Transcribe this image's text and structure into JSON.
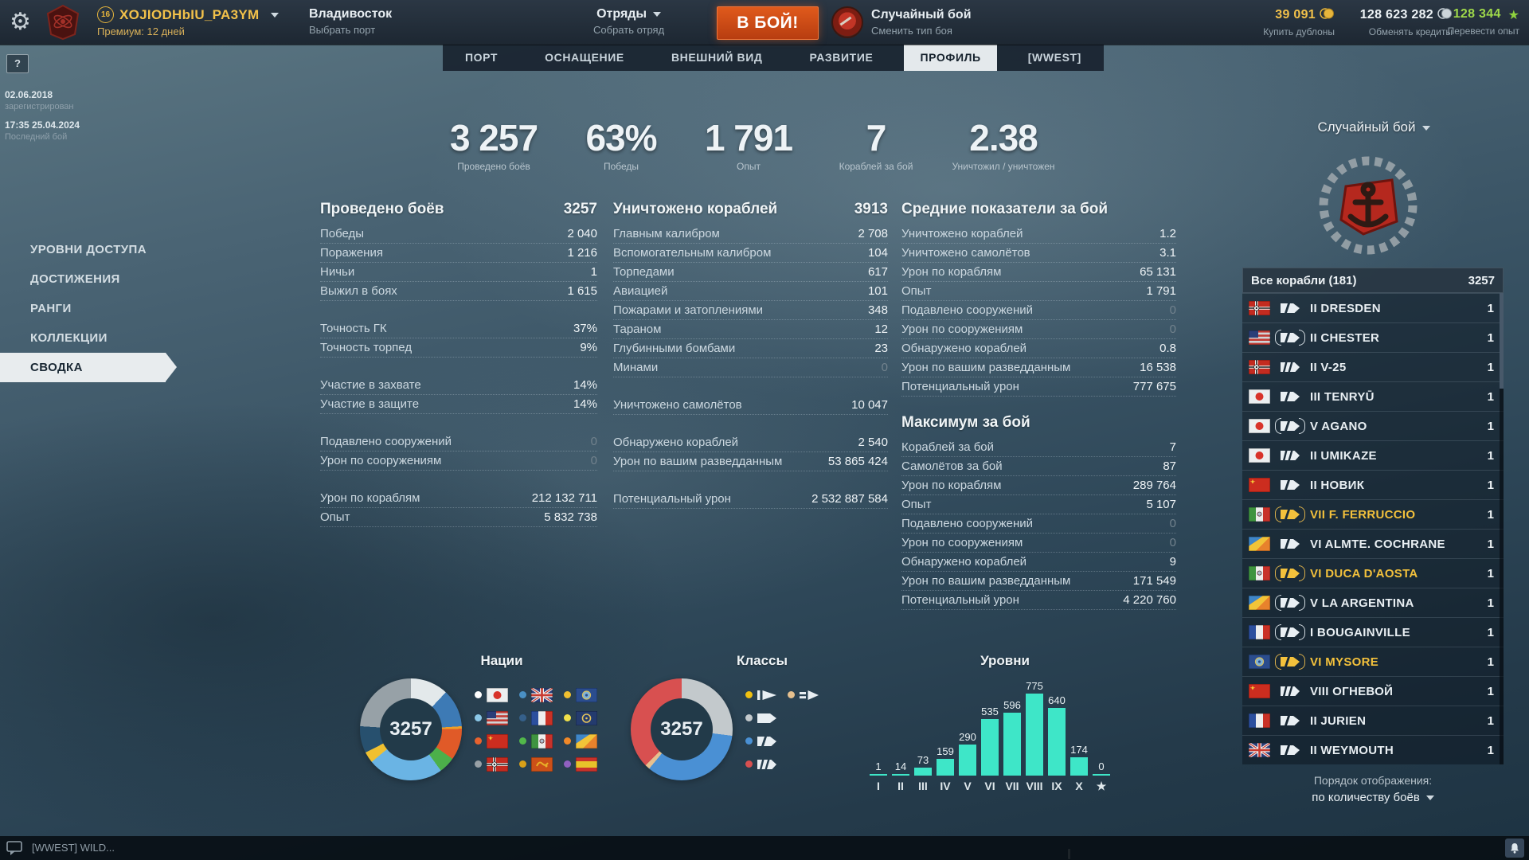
{
  "topbar": {
    "player": {
      "badge": "16",
      "name": "XOJIODHbIU_PA3YM",
      "premium": "Премиум: 12 дней"
    },
    "port": {
      "title": "Владивосток",
      "subtitle": "Выбрать порт"
    },
    "squad": {
      "title": "Отряды",
      "subtitle": "Собрать отряд"
    },
    "battle_button": "В БОЙ!",
    "battle_type": {
      "title": "Случайный бой",
      "subtitle": "Сменить тип боя"
    },
    "currencies": [
      {
        "value": "39 091",
        "label": "Купить дублоны",
        "icon": "doubloons",
        "color": "#f2c14a"
      },
      {
        "value": "128 623 282",
        "label": "Обменять кредиты",
        "icon": "credits",
        "color": "#eef3f6"
      },
      {
        "value": "128 344",
        "label": "Перевести опыт",
        "icon": "free-xp",
        "color": "#9fd94a"
      }
    ]
  },
  "tabs": {
    "items": [
      "ПОРТ",
      "ОСНАЩЕНИЕ",
      "ВНЕШНИЙ ВИД",
      "РАЗВИТИЕ",
      "ПРОФИЛЬ",
      "[WWEST]"
    ],
    "active_index": 4
  },
  "account": {
    "help": "?",
    "registered": {
      "value": "02.06.2018",
      "label": "зарегистрирован"
    },
    "last_battle": {
      "value": "17:35 25.04.2024",
      "label": "Последний бой"
    }
  },
  "menu": {
    "items": [
      "УРОВНИ ДОСТУПА",
      "ДОСТИЖЕНИЯ",
      "РАНГИ",
      "КОЛЛЕКЦИИ",
      "СВОДКА"
    ],
    "active_index": 4
  },
  "hero_stats": [
    {
      "value": "3 257",
      "label": "Проведено боёв"
    },
    {
      "value": "63%",
      "label": "Победы"
    },
    {
      "value": "1 791",
      "label": "Опыт"
    },
    {
      "value": "7",
      "label": "Кораблей за бой"
    },
    {
      "value": "2.38",
      "label": "Уничтожил / уничтожен"
    }
  ],
  "stat_columns": [
    {
      "sections": [
        {
          "title": "Проведено боёв",
          "value": "3257",
          "rows": [
            {
              "label": "Победы",
              "value": "2 040"
            },
            {
              "label": "Поражения",
              "value": "1 216"
            },
            {
              "label": "Ничьи",
              "value": "1"
            },
            {
              "label": "Выжил в боях",
              "value": "1 615"
            },
            {
              "sp": true
            },
            {
              "label": "Точность ГК",
              "value": "37%"
            },
            {
              "label": "Точность торпед",
              "value": "9%"
            },
            {
              "sp": true
            },
            {
              "label": "Участие в захвате",
              "value": "14%"
            },
            {
              "label": "Участие в защите",
              "value": "14%"
            },
            {
              "sp": true
            },
            {
              "label": "Подавлено сооружений",
              "value": "0",
              "dim": true
            },
            {
              "label": "Урон по сооружениям",
              "value": "0",
              "dim": true
            },
            {
              "sp": true
            },
            {
              "label": "Урон по кораблям",
              "value": "212 132 711"
            },
            {
              "label": "Опыт",
              "value": "5 832 738"
            }
          ]
        }
      ]
    },
    {
      "sections": [
        {
          "title": "Уничтожено кораблей",
          "value": "3913",
          "rows": [
            {
              "label": "Главным калибром",
              "value": "2 708"
            },
            {
              "label": "Вспомогательным калибром",
              "value": "104"
            },
            {
              "label": "Торпедами",
              "value": "617"
            },
            {
              "label": "Авиацией",
              "value": "101"
            },
            {
              "label": "Пожарами и затоплениями",
              "value": "348"
            },
            {
              "label": "Тараном",
              "value": "12"
            },
            {
              "label": "Глубинными бомбами",
              "value": "23"
            },
            {
              "label": "Минами",
              "value": "0",
              "dim": true
            },
            {
              "sp": true
            },
            {
              "label": "Уничтожено самолётов",
              "value": "10 047"
            },
            {
              "sp": true
            },
            {
              "label": "Обнаружено кораблей",
              "value": "2 540"
            },
            {
              "label": "Урон по вашим разведданным",
              "value": "53 865 424"
            },
            {
              "sp": true
            },
            {
              "label": "Потенциальный урон",
              "value": "2 532 887 584"
            }
          ]
        }
      ]
    },
    {
      "sections": [
        {
          "title": "Средние показатели за бой",
          "value": "",
          "rows": [
            {
              "label": "Уничтожено кораблей",
              "value": "1.2"
            },
            {
              "label": "Уничтожено самолётов",
              "value": "3.1"
            },
            {
              "label": "Урон по кораблям",
              "value": "65 131"
            },
            {
              "label": "Опыт",
              "value": "1 791"
            },
            {
              "label": "Подавлено сооружений",
              "value": "0",
              "dim": true
            },
            {
              "label": "Урон по сооружениям",
              "value": "0",
              "dim": true
            },
            {
              "label": "Обнаружено кораблей",
              "value": "0.8"
            },
            {
              "label": "Урон по вашим разведданным",
              "value": "16 538"
            },
            {
              "label": "Потенциальный урон",
              "value": "777 675"
            }
          ]
        },
        {
          "title": "Максимум за бой",
          "value": "",
          "rows": [
            {
              "label": "Кораблей за бой",
              "value": "7"
            },
            {
              "label": "Самолётов за бой",
              "value": "87"
            },
            {
              "label": "Урон по кораблям",
              "value": "289 764"
            },
            {
              "label": "Опыт",
              "value": "5 107"
            },
            {
              "label": "Подавлено сооружений",
              "value": "0",
              "dim": true
            },
            {
              "label": "Урон по сооружениям",
              "value": "0",
              "dim": true
            },
            {
              "label": "Обнаружено кораблей",
              "value": "9"
            },
            {
              "label": "Урон по вашим разведданным",
              "value": "171 549"
            },
            {
              "label": "Потенциальный урон",
              "value": "4 220 760"
            }
          ]
        }
      ]
    }
  ],
  "chart_data": [
    {
      "type": "pie",
      "title": "Нации",
      "center_label": "3257",
      "segments": [
        {
          "name": "japan",
          "color": "#e3e9eb",
          "value": 12
        },
        {
          "name": "uk",
          "color": "#3d7ab5",
          "value": 12
        },
        {
          "name": "pan_asia",
          "color": "#f0a028",
          "value": 0.8
        },
        {
          "name": "ussr",
          "color": "#e05a28",
          "value": 10
        },
        {
          "name": "italy",
          "color": "#4cb04a",
          "value": 5.2
        },
        {
          "name": "usa",
          "color": "#6ab4e4",
          "value": 24
        },
        {
          "name": "commonwealth",
          "color": "#f0c030",
          "value": 3.5
        },
        {
          "name": "france",
          "color": "#27506e",
          "value": 8.5
        },
        {
          "name": "germany",
          "color": "#97a1a7",
          "value": 24
        }
      ],
      "legend_rows": [
        [
          {
            "dot": "#ffffff",
            "flag": "japan"
          },
          {
            "dot": "#4a90c4",
            "flag": "uk"
          },
          {
            "dot": "#f0c030",
            "flag": "commonwealth"
          }
        ],
        [
          {
            "dot": "#8cc8e8",
            "flag": "usa"
          },
          {
            "dot": "#35608a",
            "flag": "france"
          },
          {
            "dot": "#f0e04a",
            "flag": "europe"
          }
        ],
        [
          {
            "dot": "#e8622e",
            "flag": "ussr"
          },
          {
            "dot": "#52b84a",
            "flag": "italy"
          },
          {
            "dot": "#f08828",
            "flag": "pan_america"
          }
        ],
        [
          {
            "dot": "#98a0a6",
            "flag": "germany"
          },
          {
            "dot": "#d8a018",
            "flag": "pan_asia"
          },
          {
            "dot": "#9060c0",
            "flag": "spain"
          }
        ]
      ],
      "legend_cols": 3
    },
    {
      "type": "pie",
      "title": "Классы",
      "center_label": "3257",
      "segments": [
        {
          "name": "battleship",
          "color": "#c3c9cc",
          "value": 27
        },
        {
          "name": "cruiser",
          "color": "#4a90d4",
          "value": 34
        },
        {
          "name": "submarine",
          "color": "#e6c08e",
          "value": 1.5
        },
        {
          "name": "destroyer",
          "color": "#d85050",
          "value": 37.5
        }
      ],
      "legend_rows": [
        [
          {
            "dot": "#f0c010",
            "class": "carrier"
          },
          {
            "dot": "#e6c08e",
            "class": "submarine"
          }
        ],
        [
          {
            "dot": "#c3c9cc",
            "class": "battleship"
          }
        ],
        [
          {
            "dot": "#4a90d4",
            "class": "cruiser"
          }
        ],
        [
          {
            "dot": "#d85050",
            "class": "destroyer"
          }
        ]
      ],
      "legend_cols": 2
    },
    {
      "type": "bar",
      "title": "Уровни",
      "categories": [
        "I",
        "II",
        "III",
        "IV",
        "V",
        "VI",
        "VII",
        "VIII",
        "IX",
        "X",
        "★"
      ],
      "values": [
        1,
        14,
        73,
        159,
        290,
        535,
        596,
        775,
        640,
        174,
        0
      ],
      "bar_color": "#3ee6c8",
      "ylim": [
        0,
        775
      ]
    }
  ],
  "ship_panel": {
    "battle_type_selector": "Случайный бой",
    "list_header": {
      "label": "Все корабли (181)",
      "value": "3257"
    },
    "ships": [
      {
        "flag": "germany",
        "class": "cruiser",
        "premium": false,
        "gold": false,
        "name": "II DRESDEN",
        "battles": "1"
      },
      {
        "flag": "usa",
        "class": "cruiser",
        "premium": true,
        "gold": false,
        "name": "II CHESTER",
        "battles": "1"
      },
      {
        "flag": "germany",
        "class": "destroyer",
        "premium": false,
        "gold": false,
        "name": "II V-25",
        "battles": "1"
      },
      {
        "flag": "japan",
        "class": "cruiser",
        "premium": false,
        "gold": false,
        "name": "III TENRYŪ",
        "battles": "1"
      },
      {
        "flag": "japan",
        "class": "cruiser",
        "premium": true,
        "gold": false,
        "name": "V AGANO",
        "battles": "1"
      },
      {
        "flag": "japan",
        "class": "destroyer",
        "premium": false,
        "gold": false,
        "name": "II UMIKAZE",
        "battles": "1"
      },
      {
        "flag": "ussr",
        "class": "cruiser",
        "premium": false,
        "gold": false,
        "name": "II НОВИК",
        "battles": "1"
      },
      {
        "flag": "italy",
        "class": "cruiser",
        "premium": true,
        "gold": true,
        "name": "VII F. FERRUCCIO",
        "battles": "1"
      },
      {
        "flag": "pan_america",
        "class": "cruiser",
        "premium": false,
        "gold": false,
        "name": "VI ALMTE. COCHRANE",
        "battles": "1"
      },
      {
        "flag": "italy",
        "class": "cruiser",
        "premium": true,
        "gold": true,
        "name": "VI DUCA D'AOSTA",
        "battles": "1"
      },
      {
        "flag": "pan_america",
        "class": "cruiser",
        "premium": true,
        "gold": false,
        "name": "V LA ARGENTINA",
        "battles": "1"
      },
      {
        "flag": "france",
        "class": "cruiser",
        "premium": true,
        "gold": false,
        "name": "I BOUGAINVILLE",
        "battles": "1"
      },
      {
        "flag": "commonwealth",
        "class": "cruiser",
        "premium": true,
        "gold": true,
        "name": "VI MYSORE",
        "battles": "1"
      },
      {
        "flag": "ussr",
        "class": "destroyer",
        "premium": false,
        "gold": false,
        "name": "VIII ОГНЕВОЙ",
        "battles": "1"
      },
      {
        "flag": "france",
        "class": "cruiser",
        "premium": false,
        "gold": false,
        "name": "II JURIEN",
        "battles": "1"
      },
      {
        "flag": "uk",
        "class": "cruiser",
        "premium": false,
        "gold": false,
        "name": "II WEYMOUTH",
        "battles": "1"
      }
    ],
    "footer": {
      "line1": "Порядок отображения:",
      "line2": "по количеству боёв"
    }
  },
  "bottom_bar": {
    "chat_text": "[WWEST] WILD..."
  }
}
